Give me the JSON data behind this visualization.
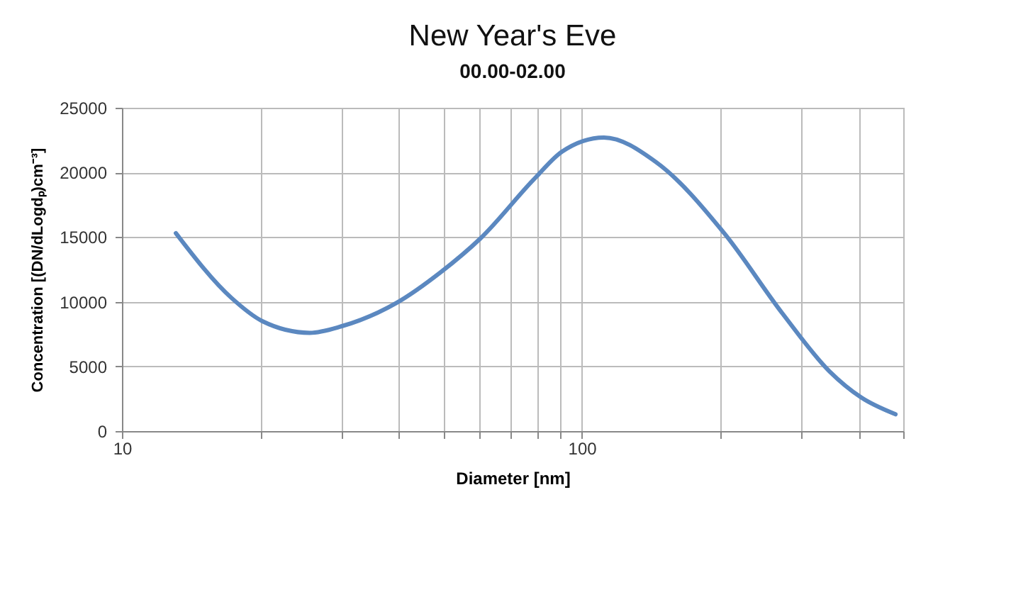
{
  "chart_data": {
    "type": "line",
    "title": "New Year's Eve",
    "subtitle": "00.00-02.00",
    "xlabel": "Diameter [nm]",
    "ylabel": "Concentration [(DN/dLogdₚ)cm⁻³]",
    "log": "x",
    "grid": true,
    "marker": "none",
    "line_style": "solid",
    "xlim": [
      10,
      500
    ],
    "xticks": [
      10,
      {
        "value": 20,
        "label": null
      },
      {
        "value": 30,
        "label": null
      },
      {
        "value": 40,
        "label": null
      },
      {
        "value": 50,
        "label": null
      },
      {
        "value": 60,
        "label": null
      },
      {
        "value": 70,
        "label": null
      },
      {
        "value": 80,
        "label": null
      },
      {
        "value": 90,
        "label": null
      },
      100,
      {
        "value": 200,
        "label": null
      },
      {
        "value": 300,
        "label": null
      },
      {
        "value": 400,
        "label": null
      },
      {
        "value": 500,
        "label": null
      }
    ],
    "ylim": [
      0,
      25000
    ],
    "yticks": [
      0,
      5000,
      10000,
      15000,
      20000,
      25000
    ],
    "series": [
      {
        "color": "#5b88c0",
        "x": [
          13.1,
          17.3,
          20.2,
          25.6,
          30.0,
          39.5,
          49.4,
          60.2,
          79.3,
          90.5,
          111.7,
          145,
          204,
          273,
          346,
          405,
          481
        ],
        "values": [
          15300,
          10300,
          8500,
          7600,
          8100,
          9900,
          12300,
          14900,
          19600,
          21600,
          22700,
          20800,
          15300,
          9100,
          4600,
          2600,
          1300
        ]
      }
    ]
  }
}
